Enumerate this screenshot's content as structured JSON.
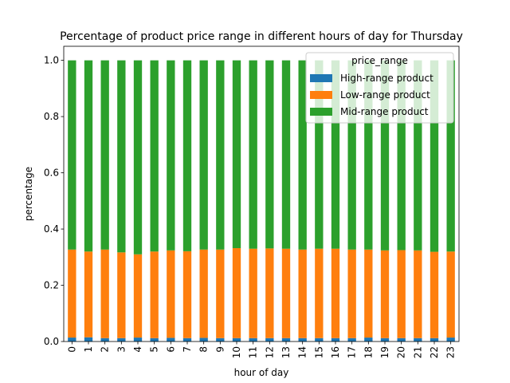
{
  "chart_data": {
    "type": "bar",
    "stacked": true,
    "title": "Percentage of product price range in different hours of day for Thursday",
    "xlabel": "hour of day",
    "ylabel": "percentage",
    "ylim": [
      0,
      1.05
    ],
    "yticks": [
      "0.0",
      "0.2",
      "0.4",
      "0.6",
      "0.8",
      "1.0"
    ],
    "grid": false,
    "legend": {
      "title": "price_range",
      "position": "top-right"
    },
    "categories": [
      "0",
      "1",
      "2",
      "3",
      "4",
      "5",
      "6",
      "7",
      "8",
      "9",
      "10",
      "11",
      "12",
      "13",
      "14",
      "15",
      "16",
      "17",
      "18",
      "19",
      "20",
      "21",
      "22",
      "23"
    ],
    "series": [
      {
        "name": "High-range product",
        "color": "#1f77b4",
        "values": [
          0.014,
          0.015,
          0.012,
          0.012,
          0.014,
          0.012,
          0.013,
          0.012,
          0.013,
          0.012,
          0.012,
          0.012,
          0.012,
          0.012,
          0.012,
          0.012,
          0.012,
          0.012,
          0.014,
          0.012,
          0.012,
          0.012,
          0.012,
          0.014
        ]
      },
      {
        "name": "Low-range product",
        "color": "#ff7f0e",
        "values": [
          0.313,
          0.305,
          0.315,
          0.305,
          0.296,
          0.308,
          0.311,
          0.309,
          0.314,
          0.315,
          0.32,
          0.318,
          0.319,
          0.318,
          0.315,
          0.318,
          0.318,
          0.315,
          0.313,
          0.312,
          0.313,
          0.312,
          0.307,
          0.306
        ]
      },
      {
        "name": "Mid-range product",
        "color": "#2ca02c",
        "values": [
          0.673,
          0.68,
          0.673,
          0.683,
          0.69,
          0.68,
          0.676,
          0.679,
          0.673,
          0.673,
          0.668,
          0.67,
          0.669,
          0.67,
          0.673,
          0.67,
          0.67,
          0.673,
          0.673,
          0.676,
          0.675,
          0.676,
          0.681,
          0.68
        ]
      }
    ]
  }
}
